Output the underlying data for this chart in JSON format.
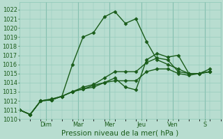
{
  "bg_color": "#b8ddd0",
  "grid_color": "#8ec8b8",
  "line_color": "#1a5c1a",
  "marker": "D",
  "markersize": 2.5,
  "linewidth": 1.0,
  "xlabel": "Pression niveau de la mer( hPa )",
  "ylim": [
    1010,
    1022.8
  ],
  "yticks": [
    1010,
    1011,
    1012,
    1013,
    1014,
    1015,
    1016,
    1017,
    1018,
    1019,
    1020,
    1021,
    1022
  ],
  "xtick_labels": [
    "Dim",
    "Mar",
    "Mer",
    "Jeu",
    "Ven",
    "S"
  ],
  "xtick_positions": [
    2.5,
    5.5,
    8.5,
    11.5,
    14.5,
    17.5
  ],
  "xlim": [
    0,
    19
  ],
  "lines": [
    {
      "x": [
        0,
        1,
        2,
        3,
        4,
        5,
        6,
        7,
        8,
        9,
        10,
        11,
        12,
        13,
        14,
        15,
        16,
        17,
        18
      ],
      "y": [
        1011,
        1010.5,
        1012,
        1012.2,
        1012.5,
        1016,
        1019,
        1019.5,
        1021.2,
        1021.8,
        1020.5,
        1021,
        1018.5,
        1016.5,
        1016,
        1015.5,
        1015,
        1015,
        1015.5
      ]
    },
    {
      "x": [
        0,
        1,
        2,
        3,
        4,
        5,
        6,
        7,
        8,
        9,
        10,
        11,
        12,
        13,
        14,
        15,
        16,
        17,
        18
      ],
      "y": [
        1011,
        1010.5,
        1012,
        1012.1,
        1012.5,
        1013,
        1013.3,
        1013.7,
        1014,
        1014.5,
        1013.5,
        1013.2,
        1016.5,
        1017.2,
        1016.8,
        1017,
        1015,
        1015,
        1015.2
      ]
    },
    {
      "x": [
        0,
        1,
        2,
        3,
        4,
        5,
        6,
        7,
        8,
        9,
        10,
        11,
        12,
        13,
        14,
        15,
        16,
        17,
        18
      ],
      "y": [
        1011,
        1010.5,
        1012,
        1012.1,
        1012.5,
        1013,
        1013.5,
        1013.8,
        1014.5,
        1015.2,
        1015.2,
        1015.2,
        1016.2,
        1016.7,
        1016.5,
        1015.2,
        1015,
        1015,
        1015.2
      ]
    },
    {
      "x": [
        0,
        1,
        2,
        3,
        4,
        5,
        6,
        7,
        8,
        9,
        10,
        11,
        12,
        13,
        14,
        15,
        16,
        17,
        18
      ],
      "y": [
        1011,
        1010.5,
        1012,
        1012.1,
        1012.5,
        1013,
        1013.3,
        1013.5,
        1014,
        1014.2,
        1014.2,
        1014.2,
        1015.2,
        1015.5,
        1015.5,
        1015,
        1014.8,
        1015,
        1015.2
      ]
    }
  ],
  "tick_fontsize": 6,
  "xlabel_fontsize": 7.5,
  "tick_color": "#1a5c1a",
  "vline_positions": [
    2.5,
    5.5,
    8.5,
    11.5,
    14.5,
    17.5
  ],
  "vline_color": "#7ab8a8"
}
